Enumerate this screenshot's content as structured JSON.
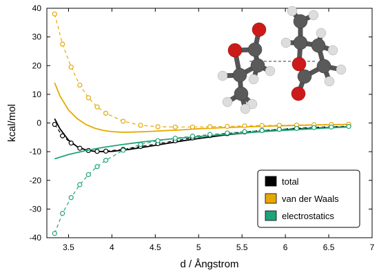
{
  "chart_data": {
    "type": "line",
    "xlabel": "d / Ångstrom",
    "ylabel": "kcal/mol",
    "xlim": [
      3.25,
      7
    ],
    "ylim": [
      -40,
      40
    ],
    "xticks": [
      "3.5",
      "4",
      "4.5",
      "5",
      "5.5",
      "6",
      "6.5",
      "7"
    ],
    "yticks": [
      "40",
      "30",
      "20",
      "10",
      "0",
      "-10",
      "-20",
      "-30",
      "-40"
    ],
    "grid": false,
    "legend_position": "bottom-right",
    "legend": [
      {
        "label": "total",
        "color": "#000000"
      },
      {
        "label": "van der Waals",
        "color": "#e6a800"
      },
      {
        "label": "electrostatics",
        "color": "#1fa37a"
      }
    ],
    "inset_image": "molecular-dimer-illustration",
    "series": [
      {
        "name": "total",
        "color": "#000000",
        "points": {
          "x": [
            3.34,
            3.43,
            3.53,
            3.63,
            3.73,
            3.83,
            3.93,
            4.13,
            4.33,
            4.53,
            4.73,
            4.93,
            5.13,
            5.33,
            5.53,
            5.73,
            5.93,
            6.13,
            6.33,
            6.53,
            6.73
          ],
          "y": [
            -0.5,
            -4.5,
            -7.0,
            -8.8,
            -9.6,
            -9.9,
            -9.8,
            -9.2,
            -8.2,
            -7.2,
            -6.2,
            -5.2,
            -4.4,
            -3.7,
            -3.1,
            -2.6,
            -2.2,
            -1.8,
            -1.5,
            -1.3,
            -1.1
          ]
        },
        "fit": {
          "x": [
            3.34,
            3.4,
            3.5,
            3.6,
            3.7,
            3.8,
            3.9,
            4.0,
            4.2,
            4.4,
            4.6,
            4.8,
            5.0,
            5.3,
            5.6,
            5.9,
            6.2,
            6.5,
            6.73
          ],
          "y": [
            1.5,
            -2.0,
            -6.0,
            -8.3,
            -9.4,
            -9.9,
            -10.0,
            -9.9,
            -9.2,
            -8.3,
            -7.3,
            -6.3,
            -5.4,
            -4.2,
            -3.3,
            -2.6,
            -2.0,
            -1.6,
            -1.3
          ]
        }
      },
      {
        "name": "van der Waals",
        "color": "#e6a800",
        "points": {
          "x": [
            3.34,
            3.43,
            3.53,
            3.63,
            3.73,
            3.83,
            3.93,
            4.13,
            4.33,
            4.53,
            4.73,
            4.93,
            5.13,
            5.33,
            5.53,
            5.73,
            5.93,
            6.13,
            6.33,
            6.53,
            6.73
          ],
          "y": [
            38.0,
            27.5,
            19.5,
            13.2,
            8.8,
            5.6,
            3.4,
            0.6,
            -0.8,
            -1.3,
            -1.4,
            -1.4,
            -1.3,
            -1.2,
            -1.0,
            -0.9,
            -0.8,
            -0.7,
            -0.6,
            -0.5,
            -0.4
          ]
        },
        "fit": {
          "x": [
            3.34,
            3.4,
            3.5,
            3.6,
            3.7,
            3.8,
            3.9,
            4.0,
            4.1,
            4.2,
            4.4,
            4.6,
            4.8,
            5.0,
            5.3,
            5.6,
            5.9,
            6.2,
            6.5,
            6.73
          ],
          "y": [
            14.0,
            9.5,
            4.5,
            1.5,
            -0.5,
            -1.8,
            -2.6,
            -3.0,
            -3.2,
            -3.2,
            -3.0,
            -2.7,
            -2.4,
            -2.0,
            -1.6,
            -1.3,
            -1.0,
            -0.8,
            -0.6,
            -0.5
          ]
        }
      },
      {
        "name": "electrostatics",
        "color": "#1fa37a",
        "points": {
          "x": [
            3.34,
            3.43,
            3.53,
            3.63,
            3.73,
            3.83,
            3.93,
            4.13,
            4.33,
            4.53,
            4.73,
            4.93,
            5.13,
            5.33,
            5.53,
            5.73,
            5.93,
            6.13,
            6.33,
            6.53,
            6.73
          ],
          "y": [
            -38.5,
            -31.5,
            -26.0,
            -21.5,
            -18.0,
            -15.2,
            -13.0,
            -9.5,
            -7.5,
            -6.2,
            -5.3,
            -4.6,
            -4.0,
            -3.5,
            -3.0,
            -2.6,
            -2.2,
            -1.9,
            -1.6,
            -1.4,
            -1.2
          ]
        },
        "fit": {
          "x": [
            3.34,
            3.5,
            3.7,
            3.9,
            4.1,
            4.3,
            4.5,
            4.7,
            5.0,
            5.3,
            5.6,
            5.9,
            6.2,
            6.5,
            6.73
          ],
          "y": [
            -12.5,
            -11.0,
            -9.6,
            -8.5,
            -7.6,
            -6.8,
            -6.1,
            -5.5,
            -4.7,
            -4.0,
            -3.3,
            -2.7,
            -2.2,
            -1.7,
            -1.4
          ]
        }
      }
    ]
  }
}
